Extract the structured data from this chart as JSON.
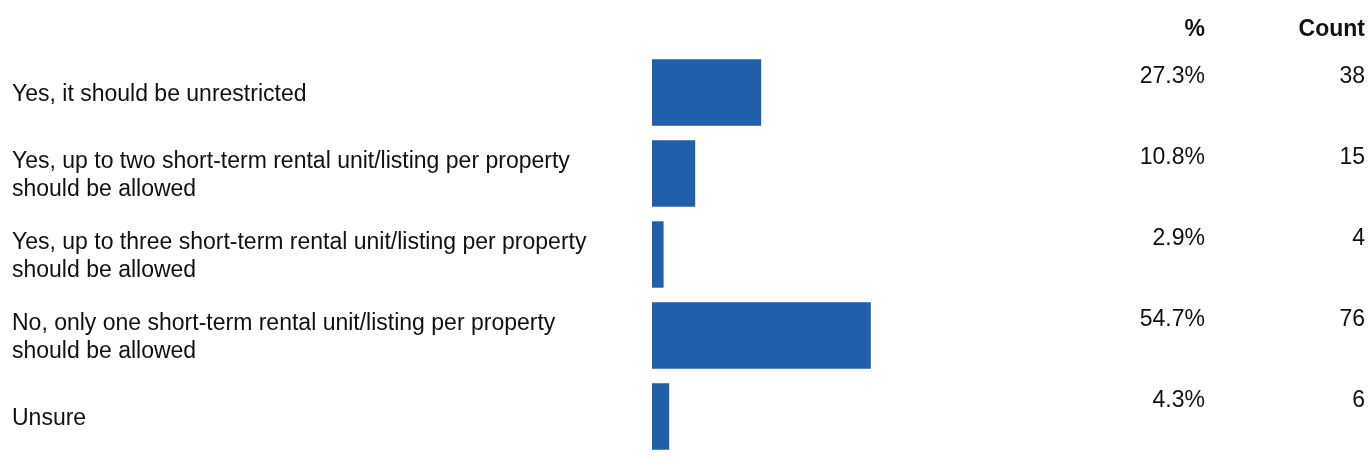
{
  "chart_data": {
    "type": "bar",
    "orientation": "horizontal",
    "categories": [
      "Yes, it should be unrestricted",
      "Yes, up to two short-term rental unit/listing per property should be allowed",
      "Yes, up to three short-term rental unit/listing per property should be allowed",
      "No, only one short-term rental unit/listing per property should be allowed",
      "Unsure"
    ],
    "values": [
      27.3,
      10.8,
      2.9,
      54.7,
      4.3
    ],
    "value_labels": [
      "27.3%",
      "10.8%",
      "2.9%",
      "54.7%",
      "4.3%"
    ],
    "color": "#1f5fac",
    "tick_labels": "y",
    "annotations": [
      {
        "text": "%"
      },
      {
        "text": "Count"
      },
      "38",
      "15",
      "4",
      "76",
      "6"
    ]
  }
}
